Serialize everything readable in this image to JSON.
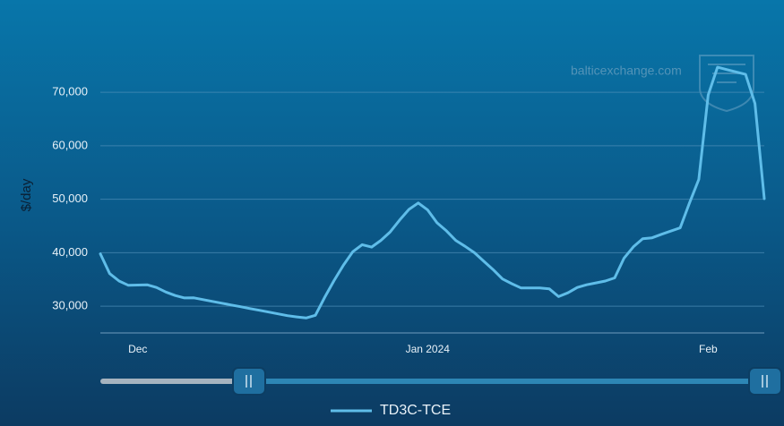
{
  "chart_data": {
    "type": "line",
    "y_label": "$/day",
    "watermark": "balticexchange.com",
    "categories": [
      null,
      null,
      null,
      null,
      "Dec",
      null,
      null,
      null,
      null,
      null,
      null,
      null,
      null,
      null,
      null,
      null,
      null,
      null,
      null,
      null,
      null,
      null,
      null,
      null,
      null,
      null,
      null,
      null,
      null,
      null,
      null,
      null,
      null,
      null,
      null,
      "Jan 2024",
      null,
      null,
      null,
      null,
      null,
      null,
      null,
      null,
      null,
      null,
      null,
      null,
      null,
      null,
      null,
      null,
      null,
      null,
      null,
      null,
      null,
      null,
      null,
      null,
      null,
      null,
      null,
      null,
      null,
      "Feb",
      null,
      null,
      null,
      null,
      null,
      null
    ],
    "series": [
      {
        "name": "TD3C-TCE",
        "color": "#5fbde9",
        "values": [
          39800,
          36100,
          34700,
          33900,
          33950,
          34000,
          33500,
          32650,
          32000,
          31550,
          31560,
          31230,
          30900,
          30560,
          30230,
          29900,
          29560,
          29230,
          28900,
          28560,
          28230,
          28000,
          27800,
          28300,
          31700,
          34800,
          37700,
          40200,
          41500,
          41050,
          42300,
          43900,
          46100,
          48100,
          49300,
          48000,
          45600,
          44100,
          42300,
          41200,
          40000,
          38400,
          36850,
          35100,
          34200,
          33400,
          33400,
          33400,
          33250,
          31800,
          32500,
          33500,
          34000,
          34350,
          34700,
          35300,
          39000,
          41100,
          42600,
          42800,
          43450,
          44050,
          44650,
          49300,
          53700,
          69500,
          74700,
          74250,
          73800,
          73350,
          67900,
          50100
        ]
      }
    ],
    "ylim": [
      25000,
      80000
    ],
    "yticks": [
      {
        "value": 30000,
        "label": "30,000"
      },
      {
        "value": 40000,
        "label": "40,000"
      },
      {
        "value": 50000,
        "label": "50,000"
      },
      {
        "value": 60000,
        "label": "60,000"
      },
      {
        "value": 70000,
        "label": "70,000"
      }
    ],
    "grid": true
  }
}
